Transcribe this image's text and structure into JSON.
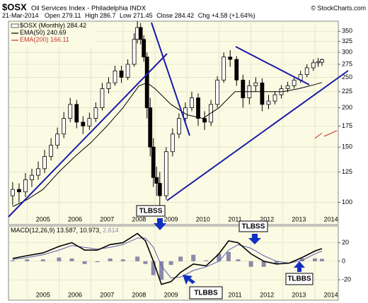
{
  "chart_data": [
    {
      "type": "candlestick",
      "title": "$OSX",
      "subtitle": "Oil Services Index - Philadelphia INDX",
      "source": "© StockCharts.com",
      "date": "21-Mar-2014",
      "quote_labels": {
        "open": "Open",
        "high": "High",
        "low": "Low",
        "close": "Close",
        "chg": "Chg"
      },
      "change": "+4.58 (+1.64%)",
      "name": "$OSX (Monthly)",
      "color_up": "#ffffff",
      "color_down": "#000000",
      "x": [
        2004.55,
        2004.75,
        2004.95,
        2005.15,
        2005.35,
        2005.55,
        2005.75,
        2005.95,
        2006.15,
        2006.35,
        2006.55,
        2006.75,
        2006.95,
        2007.15,
        2007.35,
        2007.55,
        2007.75,
        2007.95,
        2008.15,
        2008.35,
        2008.45,
        2008.55,
        2008.65,
        2008.75,
        2008.85,
        2008.95,
        2009.05,
        2009.15,
        2009.35,
        2009.55,
        2009.75,
        2009.95,
        2010.15,
        2010.35,
        2010.55,
        2010.75,
        2010.95,
        2011.15,
        2011.35,
        2011.55,
        2011.75,
        2011.95,
        2012.15,
        2012.35,
        2012.55,
        2012.75,
        2012.95,
        2013.15,
        2013.35,
        2013.55,
        2013.75,
        2013.95,
        2014.1,
        2014.22
      ],
      "open": [
        105,
        110,
        108,
        118,
        122,
        128,
        140,
        152,
        165,
        185,
        205,
        180,
        175,
        185,
        200,
        230,
        240,
        262,
        250,
        275,
        330,
        360,
        330,
        290,
        200,
        150,
        120,
        115,
        105,
        145,
        165,
        185,
        200,
        215,
        185,
        180,
        205,
        245,
        290,
        285,
        245,
        215,
        235,
        240,
        205,
        210,
        220,
        230,
        235,
        245,
        255,
        268,
        278,
        279.11
      ],
      "high": [
        116,
        115,
        124,
        128,
        135,
        147,
        160,
        173,
        194,
        215,
        212,
        188,
        193,
        208,
        240,
        250,
        272,
        272,
        285,
        345,
        377,
        372,
        340,
        300,
        215,
        160,
        130,
        125,
        150,
        172,
        192,
        208,
        225,
        222,
        195,
        212,
        252,
        300,
        305,
        292,
        255,
        245,
        250,
        248,
        220,
        226,
        236,
        242,
        252,
        262,
        275,
        285,
        288,
        286.7
      ],
      "low": [
        98,
        100,
        104,
        112,
        118,
        124,
        136,
        148,
        160,
        180,
        172,
        165,
        170,
        180,
        196,
        222,
        235,
        240,
        245,
        270,
        320,
        318,
        280,
        185,
        140,
        112,
        105,
        97,
        102,
        140,
        160,
        178,
        195,
        175,
        170,
        175,
        200,
        240,
        270,
        235,
        200,
        205,
        225,
        195,
        198,
        205,
        214,
        224,
        230,
        240,
        250,
        262,
        270,
        271.45
      ],
      "close": [
        110,
        108,
        118,
        122,
        128,
        140,
        152,
        165,
        185,
        205,
        180,
        175,
        185,
        200,
        230,
        240,
        262,
        250,
        275,
        330,
        360,
        330,
        290,
        200,
        150,
        120,
        115,
        105,
        145,
        165,
        185,
        200,
        215,
        185,
        180,
        205,
        245,
        290,
        285,
        245,
        215,
        235,
        240,
        205,
        210,
        220,
        230,
        235,
        245,
        255,
        268,
        278,
        280,
        284.42
      ],
      "series": [
        {
          "name": "EMA(50)",
          "color": "#000000",
          "x": [
            2004.55,
            2005,
            2005.5,
            2006,
            2006.5,
            2007,
            2007.5,
            2008,
            2008.5,
            2008.75,
            2009,
            2009.5,
            2010,
            2010.5,
            2011,
            2011.5,
            2012,
            2012.5,
            2013,
            2013.5,
            2014,
            2014.22
          ],
          "values": [
            97,
            102,
            110,
            125,
            140,
            155,
            175,
            200,
            235,
            240,
            230,
            205,
            190,
            185,
            200,
            225,
            225,
            225,
            225,
            230,
            237,
            240.69
          ]
        },
        {
          "name": "EMA(200)",
          "color": "#c0392b",
          "x": [
            2014.0,
            2014.22
          ],
          "values": [
            160,
            166.11
          ]
        }
      ],
      "log": true,
      "ylim": [
        85,
        377
      ],
      "yticks": [
        100,
        125,
        150,
        175,
        200,
        225,
        250,
        275,
        300,
        325,
        350
      ],
      "xlim": [
        2004.42,
        2014.73
      ],
      "xticks": [
        2005,
        2006,
        2007,
        2008,
        2009,
        2010,
        2011,
        2012,
        2013,
        2014
      ],
      "grid": true,
      "annotations": [
        "TLBSS",
        "TLBSS",
        "TLBBS",
        "TLBBS"
      ]
    },
    {
      "type": "macd",
      "series": [
        {
          "name": "MACD(12,26,9)",
          "color": "#000000",
          "x": [
            2004.55,
            2005,
            2005.5,
            2006,
            2006.4,
            2006.8,
            2007.2,
            2007.6,
            2008,
            2008.45,
            2008.7,
            2008.95,
            2009.2,
            2009.5,
            2009.8,
            2010.2,
            2010.6,
            2011.0,
            2011.3,
            2011.6,
            2012.0,
            2012.4,
            2012.8,
            2013.2,
            2013.6,
            2014.0,
            2014.22
          ],
          "values": [
            3,
            6,
            9,
            16,
            20,
            12,
            12,
            18,
            20,
            30,
            22,
            0,
            -25,
            -22,
            -12,
            -3,
            -5,
            8,
            22,
            20,
            8,
            0,
            -3,
            -2,
            4,
            11,
            13.587
          ]
        },
        {
          "name": "Signal",
          "color": "#5b5bb0",
          "x": [
            2004.55,
            2005,
            2005.5,
            2006,
            2006.4,
            2006.8,
            2007.2,
            2007.6,
            2008,
            2008.45,
            2008.7,
            2008.95,
            2009.2,
            2009.5,
            2009.8,
            2010.2,
            2010.6,
            2011.0,
            2011.3,
            2011.6,
            2012.0,
            2012.4,
            2012.8,
            2013.2,
            2013.6,
            2014.0,
            2014.22
          ],
          "values": [
            2,
            4,
            7,
            12,
            17,
            15,
            13,
            15,
            18,
            25,
            25,
            15,
            -5,
            -18,
            -17,
            -10,
            -6,
            0,
            12,
            18,
            14,
            6,
            0,
            -2,
            1,
            8,
            10.973
          ]
        },
        {
          "name": "Histogram",
          "color": "#8a8aaa",
          "x": [
            2004.55,
            2005,
            2005.5,
            2006,
            2006.4,
            2006.8,
            2007.2,
            2007.6,
            2008,
            2008.45,
            2008.7,
            2008.95,
            2009.2,
            2009.5,
            2009.8,
            2010.2,
            2010.6,
            2011.0,
            2011.3,
            2011.6,
            2012.0,
            2012.4,
            2012.8,
            2013.2,
            2013.6,
            2014.0,
            2014.22
          ],
          "values": [
            1,
            2,
            2,
            4,
            3,
            -3,
            -1,
            3,
            2,
            5,
            -3,
            -15,
            -20,
            -4,
            5,
            7,
            1,
            8,
            10,
            2,
            -6,
            -6,
            -3,
            0,
            3,
            3,
            2.614
          ]
        }
      ],
      "ylim": [
        -42,
        38
      ],
      "yticks": [
        -20,
        0,
        20
      ],
      "xlim": [
        2004.42,
        2014.73
      ],
      "xticks": [
        2005,
        2006,
        2007,
        2008,
        2009,
        2010,
        2011,
        2012,
        2013,
        2014
      ],
      "grid": true
    }
  ]
}
